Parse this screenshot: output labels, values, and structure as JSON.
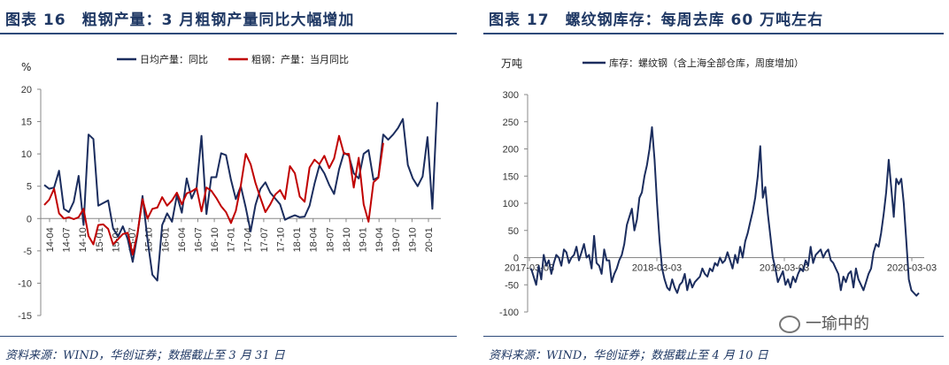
{
  "left_panel": {
    "title_num": "图表 16",
    "title_text": "粗钢产量：3 月粗钢产量同比大幅增加",
    "source": "资料来源：WIND，华创证券；数据截止至 3 月 31 日"
  },
  "right_panel": {
    "title_num": "图表 17",
    "title_text": "螺纹钢库存：每周去库 60 万吨左右",
    "source": "资料来源：WIND，华创证券；数据截止至 4 月 10 日"
  },
  "watermark": "一瑜中的",
  "chart_data": [
    {
      "type": "line",
      "unit_label": "%",
      "ylim": [
        -15,
        20
      ],
      "yticks": [
        -15,
        -10,
        -5,
        0,
        5,
        10,
        15,
        20
      ],
      "xticks": [
        "14-04",
        "14-07",
        "14-10",
        "15-01",
        "15-04",
        "15-07",
        "15-10",
        "16-01",
        "16-04",
        "16-07",
        "16-10",
        "17-01",
        "17-04",
        "17-07",
        "17-10",
        "18-01",
        "18-04",
        "18-07",
        "18-10",
        "19-01",
        "19-04",
        "19-07",
        "19-10",
        "20-01"
      ],
      "series": [
        {
          "name": "日均产量：同比",
          "color": "#1b2d5e",
          "values": [
            5.2,
            4.6,
            4.8,
            7.4,
            1.5,
            1.0,
            2.6,
            6.6,
            -1.0,
            13.0,
            12.3,
            2.0,
            2.4,
            2.8,
            -1.5,
            -2.8,
            -1.2,
            -3.2,
            -6.7,
            -2.4,
            3.5,
            -3.2,
            -8.7,
            -9.6,
            -1.0,
            0.8,
            -0.5,
            3.6,
            0.9,
            6.2,
            3.1,
            4.8,
            12.8,
            0.7,
            6.4,
            6.4,
            10.1,
            9.8,
            6.0,
            3.0,
            5.0,
            1.7,
            -2.0,
            2.1,
            4.6,
            5.6,
            4.0,
            3.1,
            2.2,
            -0.2,
            0.2,
            0.5,
            0.2,
            0.3,
            2.0,
            5.4,
            8.2,
            7.0,
            5.2,
            3.8,
            7.6,
            10.2,
            9.7,
            7.0,
            6.2,
            10.0,
            10.6,
            6.0,
            6.4,
            13.0,
            12.2,
            13.0,
            14.0,
            15.4,
            8.3,
            6.2,
            5.0,
            6.5,
            12.6,
            1.5,
            18.0
          ]
        },
        {
          "name": "粗钢：产量：当月同比",
          "color": "#c00000",
          "values": [
            2.1,
            2.9,
            4.6,
            0.8,
            0.0,
            0.2,
            -0.1,
            0.2,
            1.5,
            -2.7,
            -4.0,
            -1.0,
            -0.9,
            -1.6,
            -4.0,
            -3.2,
            -2.4,
            -2.2,
            -5.6,
            -2.2,
            3.0,
            0.0,
            1.5,
            1.7,
            3.3,
            2.0,
            2.8,
            4.0,
            2.2,
            3.9,
            4.2,
            4.7,
            1.1,
            4.8,
            4.3,
            3.2,
            1.9,
            1.0,
            -0.7,
            1.2,
            5.1,
            10.0,
            8.4,
            5.5,
            3.2,
            1.0,
            2.2,
            3.7,
            4.4,
            3.0,
            8.1,
            7.0,
            3.4,
            2.6,
            7.9,
            9.1,
            8.4,
            9.7,
            7.8,
            9.3,
            12.8,
            10.0,
            10.0,
            4.8,
            9.4,
            2.2,
            -0.5,
            5.6,
            6.3,
            11.7
          ]
        }
      ]
    },
    {
      "type": "line",
      "unit_label": "万吨",
      "ylim": [
        -100,
        300
      ],
      "yticks": [
        -100,
        -50,
        0,
        50,
        100,
        150,
        200,
        250,
        300
      ],
      "xticks": [
        "2017-03-03",
        "2018-03-03",
        "2019-03-03",
        "2020-03-03"
      ],
      "series": [
        {
          "name": "库存：螺纹钢（含上海全部仓库，周度增加）",
          "color": "#1b2d5e",
          "values": [
            -20,
            -35,
            -50,
            -15,
            -40,
            5,
            -15,
            -5,
            -30,
            -10,
            5,
            0,
            -15,
            15,
            10,
            -10,
            0,
            5,
            20,
            -5,
            10,
            25,
            0,
            5,
            -20,
            40,
            -10,
            -15,
            -30,
            15,
            -5,
            -5,
            -45,
            -30,
            -20,
            -5,
            5,
            25,
            60,
            75,
            90,
            50,
            70,
            110,
            120,
            150,
            170,
            200,
            240,
            180,
            100,
            30,
            -20,
            -40,
            -55,
            -60,
            -40,
            -55,
            -65,
            -50,
            -45,
            -30,
            -60,
            -40,
            -55,
            -45,
            -40,
            -35,
            -20,
            -30,
            -35,
            -20,
            -25,
            -10,
            -15,
            0,
            -10,
            -5,
            10,
            -5,
            -20,
            5,
            -10,
            20,
            0,
            30,
            45,
            65,
            85,
            110,
            150,
            205,
            110,
            130,
            80,
            40,
            0,
            -20,
            -45,
            -35,
            -25,
            -50,
            -40,
            -55,
            -35,
            -45,
            -30,
            -20,
            -25,
            -5,
            -15,
            20,
            -10,
            5,
            10,
            15,
            0,
            10,
            15,
            -5,
            -10,
            -20,
            -30,
            -60,
            -35,
            -45,
            -30,
            -25,
            -55,
            -20,
            -40,
            -50,
            -60,
            -45,
            -30,
            -20,
            10,
            25,
            20,
            45,
            80,
            120,
            180,
            130,
            75,
            145,
            135,
            145,
            100,
            30,
            -40,
            -60,
            -65,
            -70,
            -65
          ]
        }
      ]
    }
  ]
}
